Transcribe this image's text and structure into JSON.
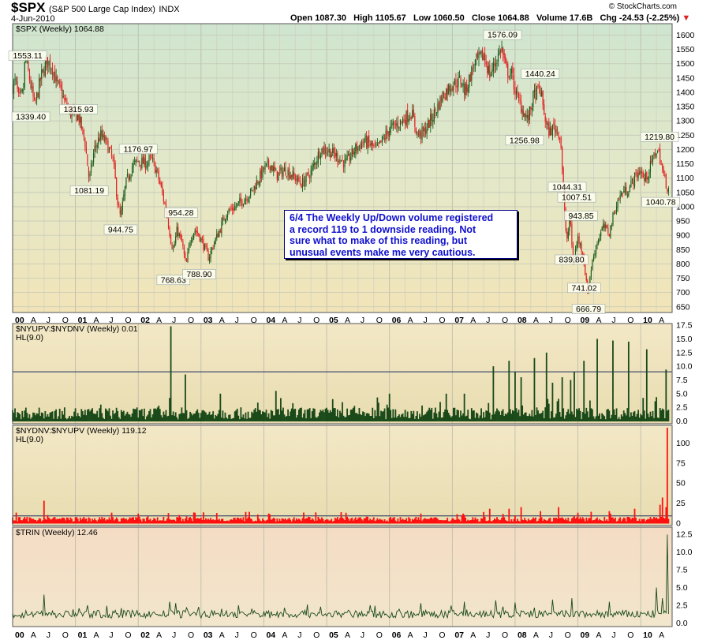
{
  "header": {
    "symbol": "$SPX",
    "name": "(S&P 500 Large Cap Index)",
    "exchange": "INDX",
    "date": "4-Jun-2010",
    "watermark": "© StockCharts.com",
    "open_label": "Open",
    "open": "1087.30",
    "high_label": "High",
    "high": "1105.67",
    "low_label": "Low",
    "low": "1060.50",
    "close_label": "Close",
    "close": "1064.88",
    "volume_label": "Volume",
    "volume": "17.6B",
    "chg_label": "Chg",
    "chg": "-24.53 (-2.25%)"
  },
  "colors": {
    "up": "#1a5c1a",
    "down": "#e02020",
    "upv_bar": "#1a4a1a",
    "dnv_bar": "#ff1010",
    "trin_line": "#1a4a1a",
    "note_text": "#1010d0",
    "accent": "#e02020"
  },
  "annotation": {
    "lines": [
      "6/4 The Weekly Up/Down volume registered",
      "a record 119 to 1 downside reading.   Not",
      "sure what to make of this reading, but",
      "unusual events make me very cautious."
    ]
  },
  "chart_data": [
    {
      "type": "candlestick",
      "legend": "$SPX (Weekly) 1064.88",
      "ylim": [
        630,
        1640
      ],
      "yticks": [
        650,
        700,
        750,
        800,
        850,
        900,
        950,
        1000,
        1050,
        1100,
        1150,
        1200,
        1250,
        1300,
        1350,
        1400,
        1450,
        1500,
        1550,
        1600
      ],
      "grid": true,
      "xlim": [
        2000.0,
        2010.45
      ],
      "x_ticks": [
        {
          "label": "00",
          "x": 2000.0,
          "year": true
        },
        {
          "label": "A",
          "x": 2000.25
        },
        {
          "label": "J",
          "x": 2000.5
        },
        {
          "label": "O",
          "x": 2000.75
        },
        {
          "label": "01",
          "x": 2001.0,
          "year": true
        },
        {
          "label": "A",
          "x": 2001.25
        },
        {
          "label": "J",
          "x": 2001.5
        },
        {
          "label": "O",
          "x": 2001.75
        },
        {
          "label": "02",
          "x": 2002.0,
          "year": true
        },
        {
          "label": "A",
          "x": 2002.25
        },
        {
          "label": "J",
          "x": 2002.5
        },
        {
          "label": "O",
          "x": 2002.75
        },
        {
          "label": "03",
          "x": 2003.0,
          "year": true
        },
        {
          "label": "A",
          "x": 2003.25
        },
        {
          "label": "J",
          "x": 2003.5
        },
        {
          "label": "O",
          "x": 2003.75
        },
        {
          "label": "04",
          "x": 2004.0,
          "year": true
        },
        {
          "label": "A",
          "x": 2004.25
        },
        {
          "label": "J",
          "x": 2004.5
        },
        {
          "label": "O",
          "x": 2004.75
        },
        {
          "label": "05",
          "x": 2005.0,
          "year": true
        },
        {
          "label": "A",
          "x": 2005.25
        },
        {
          "label": "J",
          "x": 2005.5
        },
        {
          "label": "O",
          "x": 2005.75
        },
        {
          "label": "06",
          "x": 2006.0,
          "year": true
        },
        {
          "label": "A",
          "x": 2006.25
        },
        {
          "label": "J",
          "x": 2006.5
        },
        {
          "label": "O",
          "x": 2006.75
        },
        {
          "label": "07",
          "x": 2007.0,
          "year": true
        },
        {
          "label": "A",
          "x": 2007.25
        },
        {
          "label": "J",
          "x": 2007.5
        },
        {
          "label": "O",
          "x": 2007.75
        },
        {
          "label": "08",
          "x": 2008.0,
          "year": true
        },
        {
          "label": "A",
          "x": 2008.25
        },
        {
          "label": "J",
          "x": 2008.5
        },
        {
          "label": "O",
          "x": 2008.75
        },
        {
          "label": "09",
          "x": 2009.0,
          "year": true
        },
        {
          "label": "A",
          "x": 2009.25
        },
        {
          "label": "J",
          "x": 2009.5
        },
        {
          "label": "O",
          "x": 2009.75
        },
        {
          "label": "10",
          "x": 2010.0,
          "year": true
        },
        {
          "label": "A",
          "x": 2010.25
        }
      ],
      "anchors": [
        [
          2000.0,
          1420
        ],
        [
          2000.05,
          1440
        ],
        [
          2000.1,
          1370
        ],
        [
          2000.17,
          1400
        ],
        [
          2000.2,
          1527
        ],
        [
          2000.3,
          1410
        ],
        [
          2000.35,
          1350
        ],
        [
          2000.45,
          1450
        ],
        [
          2000.55,
          1510
        ],
        [
          2000.63,
          1490
        ],
        [
          2000.7,
          1430
        ],
        [
          2000.78,
          1400
        ],
        [
          2000.82,
          1370
        ],
        [
          2000.9,
          1330
        ],
        [
          2000.97,
          1320
        ],
        [
          2001.05,
          1315
        ],
        [
          2001.15,
          1230
        ],
        [
          2001.22,
          1090
        ],
        [
          2001.3,
          1200
        ],
        [
          2001.4,
          1250
        ],
        [
          2001.5,
          1220
        ],
        [
          2001.6,
          1160
        ],
        [
          2001.68,
          1000
        ],
        [
          2001.72,
          960
        ],
        [
          2001.8,
          1080
        ],
        [
          2001.9,
          1140
        ],
        [
          2002.0,
          1160
        ],
        [
          2002.12,
          1150
        ],
        [
          2002.2,
          1170
        ],
        [
          2002.3,
          1120
        ],
        [
          2002.38,
          1050
        ],
        [
          2002.45,
          980
        ],
        [
          2002.53,
          870
        ],
        [
          2002.56,
          850
        ],
        [
          2002.62,
          920
        ],
        [
          2002.7,
          870
        ],
        [
          2002.76,
          790
        ],
        [
          2002.83,
          890
        ],
        [
          2002.9,
          920
        ],
        [
          2002.97,
          900
        ],
        [
          2003.05,
          860
        ],
        [
          2003.12,
          820
        ],
        [
          2003.2,
          870
        ],
        [
          2003.3,
          920
        ],
        [
          2003.4,
          980
        ],
        [
          2003.55,
          1000
        ],
        [
          2003.65,
          1020
        ],
        [
          2003.8,
          1050
        ],
        [
          2004.0,
          1130
        ],
        [
          2004.1,
          1150
        ],
        [
          2004.2,
          1110
        ],
        [
          2004.35,
          1130
        ],
        [
          2004.5,
          1100
        ],
        [
          2004.6,
          1080
        ],
        [
          2004.75,
          1120
        ],
        [
          2004.9,
          1200
        ],
        [
          2005.0,
          1200
        ],
        [
          2005.2,
          1170
        ],
        [
          2005.3,
          1150
        ],
        [
          2005.45,
          1200
        ],
        [
          2005.6,
          1230
        ],
        [
          2005.8,
          1200
        ],
        [
          2006.0,
          1270
        ],
        [
          2006.2,
          1300
        ],
        [
          2006.35,
          1330
        ],
        [
          2006.45,
          1250
        ],
        [
          2006.55,
          1260
        ],
        [
          2006.7,
          1320
        ],
        [
          2006.85,
          1390
        ],
        [
          2007.0,
          1430
        ],
        [
          2007.15,
          1440
        ],
        [
          2007.2,
          1400
        ],
        [
          2007.35,
          1500
        ],
        [
          2007.5,
          1530
        ],
        [
          2007.6,
          1460
        ],
        [
          2007.75,
          1540
        ],
        [
          2007.78,
          1560
        ],
        [
          2007.85,
          1480
        ],
        [
          2007.95,
          1460
        ],
        [
          2008.03,
          1380
        ],
        [
          2008.1,
          1350
        ],
        [
          2008.2,
          1300
        ],
        [
          2008.3,
          1390
        ],
        [
          2008.4,
          1410
        ],
        [
          2008.5,
          1280
        ],
        [
          2008.55,
          1260
        ],
        [
          2008.62,
          1280
        ],
        [
          2008.7,
          1260
        ],
        [
          2008.73,
          1220
        ],
        [
          2008.78,
          1000
        ],
        [
          2008.82,
          880
        ],
        [
          2008.88,
          960
        ],
        [
          2008.92,
          800
        ],
        [
          2009.0,
          890
        ],
        [
          2009.08,
          840
        ],
        [
          2009.15,
          700
        ],
        [
          2009.2,
          770
        ],
        [
          2009.28,
          860
        ],
        [
          2009.4,
          930
        ],
        [
          2009.5,
          910
        ],
        [
          2009.6,
          1000
        ],
        [
          2009.7,
          1050
        ],
        [
          2009.8,
          1060
        ],
        [
          2009.9,
          1100
        ],
        [
          2010.0,
          1130
        ],
        [
          2010.05,
          1090
        ],
        [
          2010.12,
          1120
        ],
        [
          2010.25,
          1200
        ],
        [
          2010.3,
          1180
        ],
        [
          2010.36,
          1110
        ],
        [
          2010.43,
          1065
        ]
      ],
      "labels": [
        {
          "text": "1553.11",
          "x": 2000.24,
          "y": 1553.11,
          "pos": "below"
        },
        {
          "text": "1339.40",
          "x": 2000.29,
          "y": 1339.4,
          "pos": "below"
        },
        {
          "text": "1315.93",
          "x": 2001.05,
          "y": 1315.93,
          "pos": "above"
        },
        {
          "text": "1081.19",
          "x": 2001.22,
          "y": 1081.19,
          "pos": "below"
        },
        {
          "text": "944.75",
          "x": 2001.72,
          "y": 944.75,
          "pos": "below"
        },
        {
          "text": "1176.97",
          "x": 2002.0,
          "y": 1176.97,
          "pos": "above"
        },
        {
          "text": "954.28",
          "x": 2002.68,
          "y": 954.28,
          "pos": "above"
        },
        {
          "text": "768.63",
          "x": 2002.56,
          "y": 768.63,
          "pos": "below"
        },
        {
          "text": "788.90",
          "x": 2002.97,
          "y": 788.9,
          "pos": "below"
        },
        {
          "text": "1576.09",
          "x": 2007.8,
          "y": 1576.09,
          "pos": "above"
        },
        {
          "text": "1440.24",
          "x": 2008.4,
          "y": 1440.24,
          "pos": "above"
        },
        {
          "text": "1256.98",
          "x": 2008.15,
          "y": 1256.98,
          "pos": "below"
        },
        {
          "text": "1044.31",
          "x": 2008.83,
          "y": 1044.31,
          "pos": "above"
        },
        {
          "text": "1007.51",
          "x": 2008.98,
          "y": 1007.51,
          "pos": "above"
        },
        {
          "text": "943.85",
          "x": 2009.05,
          "y": 943.85,
          "pos": "above"
        },
        {
          "text": "839.80",
          "x": 2008.9,
          "y": 839.8,
          "pos": "below"
        },
        {
          "text": "741.02",
          "x": 2009.1,
          "y": 741.02,
          "pos": "below"
        },
        {
          "text": "666.79",
          "x": 2009.17,
          "y": 666.79,
          "pos": "below"
        },
        {
          "text": "1219.80",
          "x": 2010.3,
          "y": 1219.8,
          "pos": "above"
        },
        {
          "text": "1040.78",
          "x": 2010.32,
          "y": 1040.78,
          "pos": "below"
        }
      ]
    },
    {
      "type": "bar",
      "legend": "$NYUPV:$NYDNV (Weekly) 0.01",
      "sublegend": "HL(9.0)",
      "ylim": [
        -0.5,
        17.8
      ],
      "yticks": [
        0.0,
        2.5,
        5.0,
        7.5,
        10.0,
        12.5,
        15.0,
        17.5
      ],
      "baseline": 9.0,
      "typical": [
        0.3,
        2.5
      ],
      "spikes": [
        [
          2002.52,
          17.3
        ],
        [
          2002.75,
          8.5
        ],
        [
          2003.3,
          5.0
        ],
        [
          2004.2,
          5.5
        ],
        [
          2005.1,
          4.0
        ],
        [
          2006.0,
          5.0
        ],
        [
          2006.9,
          5.0
        ],
        [
          2007.2,
          5.0
        ],
        [
          2007.65,
          10.0
        ],
        [
          2007.9,
          11.0
        ],
        [
          2008.0,
          9.0
        ],
        [
          2008.1,
          8.0
        ],
        [
          2008.3,
          11.5
        ],
        [
          2008.5,
          12.5
        ],
        [
          2008.6,
          7.0
        ],
        [
          2008.75,
          8.0
        ],
        [
          2008.88,
          7.5
        ],
        [
          2008.95,
          9.0
        ],
        [
          2009.1,
          11.0
        ],
        [
          2009.3,
          15.0
        ],
        [
          2009.55,
          14.7
        ],
        [
          2009.8,
          14.5
        ],
        [
          2010.1,
          13.1
        ],
        [
          2010.4,
          9.4
        ]
      ]
    },
    {
      "type": "bar",
      "legend": "$NYDNV:$NYUPV (Weekly) 119.12",
      "sublegend": "HL(9.0)",
      "ylim": [
        -3,
        122
      ],
      "yticks": [
        0,
        25,
        50,
        75,
        100
      ],
      "baseline": 9.0,
      "typical": [
        2,
        8
      ],
      "spikes": [
        [
          2000.5,
          28
        ],
        [
          2002.0,
          12
        ],
        [
          2002.9,
          13
        ],
        [
          2004.1,
          11
        ],
        [
          2005.3,
          13
        ],
        [
          2006.5,
          12
        ],
        [
          2007.6,
          18
        ],
        [
          2007.9,
          18
        ],
        [
          2008.1,
          20
        ],
        [
          2008.4,
          15
        ],
        [
          2008.7,
          20
        ],
        [
          2009.0,
          13
        ],
        [
          2009.5,
          15
        ],
        [
          2009.9,
          18
        ],
        [
          2010.3,
          23
        ],
        [
          2010.35,
          32
        ],
        [
          2010.4,
          20
        ],
        [
          2010.43,
          119.12
        ]
      ]
    },
    {
      "type": "line",
      "legend": "$TRIN (Weekly) 12.46",
      "ylim": [
        -0.5,
        13.5
      ],
      "yticks": [
        0.0,
        2.5,
        5.0,
        7.5,
        10.0,
        12.5
      ],
      "typical": [
        0.7,
        1.8
      ],
      "spikes": [
        [
          2000.5,
          4.0
        ],
        [
          2001.2,
          2.5
        ],
        [
          2002.5,
          3.0
        ],
        [
          2002.6,
          2.8
        ],
        [
          2003.6,
          2.5
        ],
        [
          2004.7,
          2.6
        ],
        [
          2005.7,
          2.5
        ],
        [
          2006.5,
          2.8
        ],
        [
          2007.2,
          3.0
        ],
        [
          2007.7,
          3.2
        ],
        [
          2008.0,
          2.9
        ],
        [
          2008.6,
          3.3
        ],
        [
          2008.9,
          3.5
        ],
        [
          2009.5,
          3.0
        ],
        [
          2010.25,
          5.0
        ],
        [
          2010.35,
          3.5
        ],
        [
          2010.43,
          12.46
        ]
      ]
    }
  ]
}
